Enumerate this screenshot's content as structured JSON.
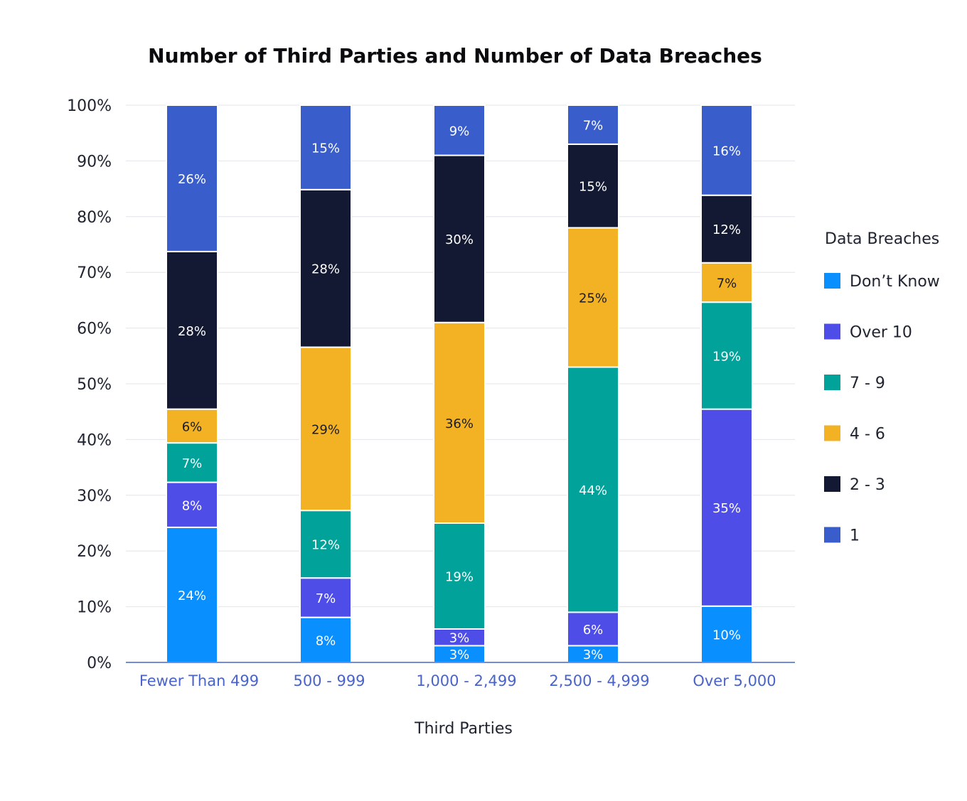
{
  "chart_data": {
    "type": "bar",
    "stacked": true,
    "title": "Number of Third Parties and Number of Data Breaches",
    "xlabel": "Third Parties",
    "ylabel": "",
    "ylim": [
      0,
      100
    ],
    "y_ticks": [
      "0%",
      "10%",
      "20%",
      "30%",
      "40%",
      "50%",
      "60%",
      "70%",
      "80%",
      "90%",
      "100%"
    ],
    "grid": true,
    "categories": [
      "Fewer Than 499",
      "500 - 999",
      "1,000 - 2,499",
      "2,500 - 4,999",
      "Over 5,000"
    ],
    "legend_title": "Data Breaches",
    "legend_position": "right",
    "series": [
      {
        "name": "Don’t Know",
        "color": "#0a8fff",
        "label_color": "#ffffff",
        "values": [
          24,
          8,
          3,
          3,
          10
        ],
        "labels": [
          "24%",
          "8%",
          "3%",
          "3%",
          "10%"
        ]
      },
      {
        "name": "Over 10",
        "color": "#4f4de8",
        "label_color": "#ffffff",
        "values": [
          8,
          7,
          3,
          6,
          35
        ],
        "labels": [
          "8%",
          "7%",
          "3%",
          "6%",
          "35%"
        ]
      },
      {
        "name": "7 - 9",
        "color": "#00a29a",
        "label_color": "#ffffff",
        "values": [
          7,
          12,
          19,
          44,
          19
        ],
        "labels": [
          "7%",
          "12%",
          "19%",
          "44%",
          "19%"
        ]
      },
      {
        "name": "4 - 6",
        "color": "#f2b224",
        "label_color": "#1b1b24",
        "values": [
          6,
          29,
          36,
          25,
          7
        ],
        "labels": [
          "6%",
          "29%",
          "36%",
          "25%",
          "7%"
        ]
      },
      {
        "name": "2 - 3",
        "color": "#141933",
        "label_color": "#ffffff",
        "values": [
          28,
          28,
          30,
          15,
          12
        ],
        "labels": [
          "28%",
          "28%",
          "30%",
          "15%",
          "12%"
        ]
      },
      {
        "name": "1",
        "color": "#3a5dcc",
        "label_color": "#ffffff",
        "values": [
          26,
          15,
          9,
          7,
          16
        ],
        "labels": [
          "26%",
          "15%",
          "9%",
          "7%",
          "16%"
        ]
      }
    ]
  }
}
